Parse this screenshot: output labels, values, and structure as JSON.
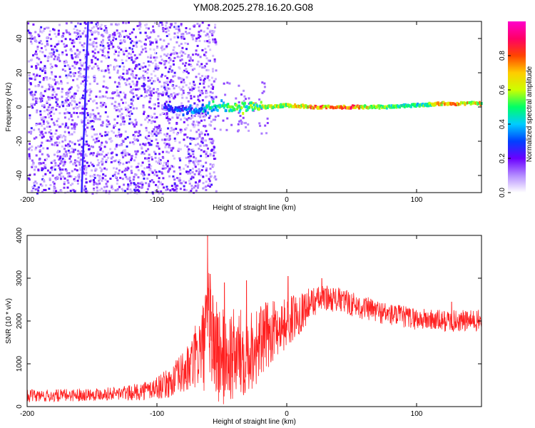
{
  "title": "YM08.2025.278.16.20.G08",
  "chart_data": [
    {
      "type": "heatmap",
      "xlabel": "Height of straight line (km)",
      "ylabel": "Frequency (Hz)",
      "xlim": [
        -200,
        150
      ],
      "ylim": [
        -50,
        50
      ],
      "xticks": [
        -200,
        -100,
        0,
        100
      ],
      "xtick_labels": [
        "-200",
        "-100",
        "0",
        "100"
      ],
      "yticks": [
        -40,
        -20,
        0,
        20,
        40
      ],
      "ytick_labels": [
        "-40",
        "-20",
        "0",
        "20",
        "40"
      ],
      "colorbar": {
        "label": "Normalized spectral amplitude",
        "range": [
          0,
          1
        ],
        "ticks": [
          0.0,
          0.2,
          0.4,
          0.6,
          0.8
        ],
        "tick_labels": [
          "0.0",
          "0.2",
          "0.4",
          "0.6",
          "0.8"
        ],
        "colors": [
          "#ffffff",
          "#b48cff",
          "#6a00ff",
          "#0040ff",
          "#00ccff",
          "#00ff66",
          "#ccff00",
          "#ffcc00",
          "#ff4400",
          "#ff0066",
          "#ff00cc"
        ]
      },
      "noise_region_x": [
        -200,
        -55
      ],
      "signal_trace": [
        {
          "x": -95,
          "freq": 0,
          "amp": 0.3
        },
        {
          "x": -75,
          "freq": -2,
          "amp": 0.4
        },
        {
          "x": -55,
          "freq": 0,
          "amp": 0.55
        },
        {
          "x": -35,
          "freq": 0,
          "amp": 0.6
        },
        {
          "x": -15,
          "freq": 0,
          "amp": 0.7
        },
        {
          "x": 0,
          "freq": 1,
          "amp": 0.75
        },
        {
          "x": 20,
          "freq": 0,
          "amp": 0.9
        },
        {
          "x": 50,
          "freq": 0,
          "amp": 0.95
        },
        {
          "x": 75,
          "freq": 0,
          "amp": 0.6
        },
        {
          "x": 100,
          "freq": 1,
          "amp": 0.55
        },
        {
          "x": 120,
          "freq": 2,
          "amp": 0.85
        },
        {
          "x": 150,
          "freq": 2,
          "amp": 0.8
        }
      ],
      "vertical_line_x": -155
    },
    {
      "type": "line",
      "xlabel": "Height of straight line (km)",
      "ylabel": "SNR (10 * v/v)",
      "xlim": [
        -200,
        150
      ],
      "ylim": [
        0,
        4000
      ],
      "xticks": [
        -200,
        -100,
        0,
        100
      ],
      "xtick_labels": [
        "-200",
        "-100",
        "0",
        "100"
      ],
      "yticks": [
        0,
        1000,
        2000,
        3000,
        4000
      ],
      "ytick_labels": [
        "0",
        "1000",
        "2000",
        "3000",
        "4000"
      ],
      "color": "#ff2020",
      "envelope": [
        {
          "x": -200,
          "mean": 250,
          "amp": 150
        },
        {
          "x": -180,
          "mean": 250,
          "amp": 150
        },
        {
          "x": -160,
          "mean": 280,
          "amp": 150
        },
        {
          "x": -140,
          "mean": 300,
          "amp": 150
        },
        {
          "x": -120,
          "mean": 320,
          "amp": 180
        },
        {
          "x": -105,
          "mean": 400,
          "amp": 250
        },
        {
          "x": -90,
          "mean": 550,
          "amp": 350
        },
        {
          "x": -75,
          "mean": 900,
          "amp": 600
        },
        {
          "x": -65,
          "mean": 1400,
          "amp": 1000
        },
        {
          "x": -60,
          "mean": 1700,
          "amp": 1500
        },
        {
          "x": -50,
          "mean": 1100,
          "amp": 1200
        },
        {
          "x": -40,
          "mean": 1200,
          "amp": 1100
        },
        {
          "x": -30,
          "mean": 1300,
          "amp": 1000
        },
        {
          "x": -20,
          "mean": 1500,
          "amp": 900
        },
        {
          "x": -10,
          "mean": 1800,
          "amp": 700
        },
        {
          "x": 0,
          "mean": 1950,
          "amp": 600
        },
        {
          "x": 10,
          "mean": 2200,
          "amp": 500
        },
        {
          "x": 20,
          "mean": 2450,
          "amp": 350
        },
        {
          "x": 30,
          "mean": 2550,
          "amp": 300
        },
        {
          "x": 45,
          "mean": 2450,
          "amp": 300
        },
        {
          "x": 60,
          "mean": 2300,
          "amp": 280
        },
        {
          "x": 80,
          "mean": 2150,
          "amp": 270
        },
        {
          "x": 100,
          "mean": 2050,
          "amp": 260
        },
        {
          "x": 120,
          "mean": 2000,
          "amp": 260
        },
        {
          "x": 150,
          "mean": 2000,
          "amp": 260
        }
      ],
      "spikes": [
        {
          "x": -61,
          "y": 4000
        },
        {
          "x": -59,
          "y": 3100
        },
        {
          "x": -57,
          "y": 2600
        },
        {
          "x": -48,
          "y": 2900
        },
        {
          "x": -31,
          "y": 2950
        },
        {
          "x": 1,
          "y": 3050
        },
        {
          "x": 27,
          "y": 3000
        },
        {
          "x": 127,
          "y": 2450
        }
      ]
    }
  ]
}
